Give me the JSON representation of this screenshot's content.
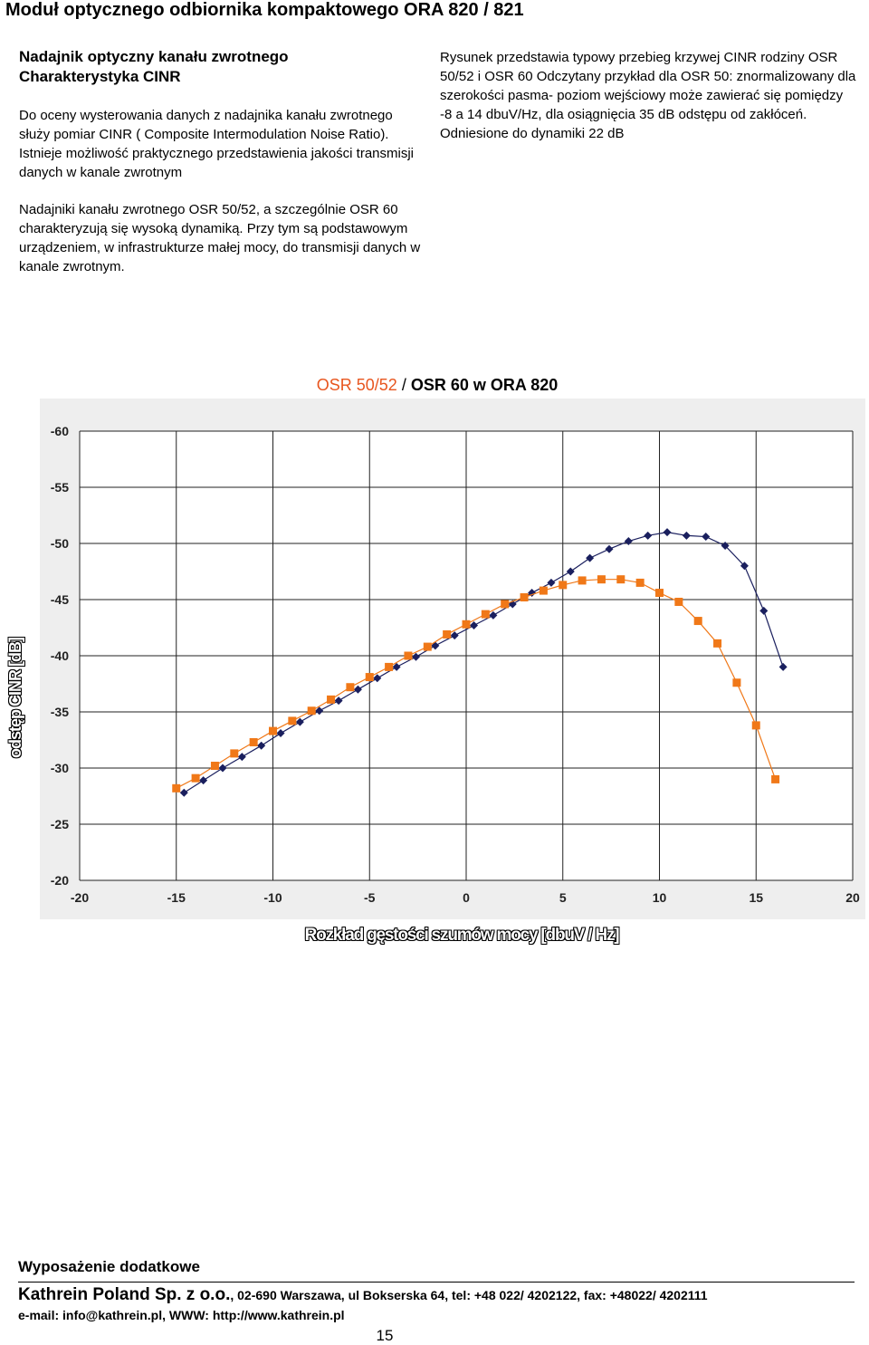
{
  "header": {
    "title": "Moduł optycznego odbiornika kompaktowego  ORA 820 / 821"
  },
  "left_column": {
    "heading_line1": "Nadajnik optyczny kanału zwrotnego",
    "heading_line2": "Charakterystyka CINR",
    "paragraph1": "Do oceny wysterowania danych z nadajnika kanału zwrotnego służy pomiar CINR ( Composite Intermodulation Noise Ratio). Istnieje możliwość praktycznego przedstawienia jakości transmisji danych w kanale zwrotnym",
    "paragraph2": "Nadajniki kanału zwrotnego OSR 50/52, a szczególnie OSR 60 charakteryzują się wysoką dynamiką.  Przy tym  są podstawowym urządzeniem, w infrastrukturze małej mocy, do transmisji danych w kanale zwrotnym."
  },
  "right_column": {
    "text": "Rysunek przedstawia typowy przebieg krzywej CINR rodziny  OSR 50/52 i  OSR 60 Odczytany przykład dla OSR 50: znormalizowany dla szerokości pasma- poziom wejściowy może zawierać się pomiędzy  -8 a 14 dbuV/Hz, dla osiągnięcia 35 dB odstępu od zakłóceń. Odniesione do dynamiki 22 dB"
  },
  "chart_title": {
    "part_orange": "OSR 50/52",
    "separator": " / ",
    "part_black": "OSR 60 w ORA 820"
  },
  "chart_data": {
    "type": "line",
    "title": "OSR 50/52 / OSR 60 w ORA 820",
    "xlabel": "Rozkład gęstości szumów mocy [dbuV / Hz]",
    "ylabel": "odstęp CINR [dB]",
    "xlim": [
      -20,
      20
    ],
    "ylim": [
      -20,
      -60
    ],
    "x_ticks": [
      "-20",
      "-15",
      "-10",
      "-5",
      "0",
      "5",
      "10",
      "15",
      "20"
    ],
    "y_ticks": [
      "-60",
      "-55",
      "-50",
      "-45",
      "-40",
      "-35",
      "-30",
      "-25",
      "-20"
    ],
    "grid": true,
    "series": [
      {
        "marker": "diamond",
        "color": "#1a1f5e",
        "x": [
          -14.6,
          -13.6,
          -12.6,
          -11.6,
          -10.6,
          -9.6,
          -8.6,
          -7.6,
          -6.6,
          -5.6,
          -4.6,
          -3.6,
          -2.6,
          -1.6,
          -0.6,
          0.4,
          1.4,
          2.4,
          3.4,
          4.4,
          5.4,
          6.4,
          7.4,
          8.4,
          9.4,
          10.4,
          11.4,
          12.4,
          13.4,
          14.4,
          15.4,
          16.4
        ],
        "y": [
          -27.8,
          -28.9,
          -30.0,
          -31.0,
          -32.0,
          -33.1,
          -34.1,
          -35.1,
          -36.0,
          -37.0,
          -38.0,
          -39.0,
          -39.9,
          -40.9,
          -41.8,
          -42.7,
          -43.6,
          -44.6,
          -45.6,
          -46.5,
          -47.5,
          -48.7,
          -49.5,
          -50.2,
          -50.7,
          -51.0,
          -50.7,
          -50.6,
          -49.8,
          -48.0,
          -44.0,
          -39.0
        ]
      },
      {
        "marker": "square",
        "color": "#f07818",
        "x": [
          -15.0,
          -14.0,
          -13.0,
          -12.0,
          -11.0,
          -10.0,
          -9.0,
          -8.0,
          -7.0,
          -6.0,
          -5.0,
          -4.0,
          -3.0,
          -2.0,
          -1.0,
          0.0,
          1.0,
          2.0,
          3.0,
          4.0,
          5.0,
          6.0,
          7.0,
          8.0,
          9.0,
          10.0,
          11.0,
          12.0,
          13.0,
          14.0,
          15.0,
          16.0
        ],
        "y": [
          -28.2,
          -29.1,
          -30.2,
          -31.3,
          -32.3,
          -33.3,
          -34.2,
          -35.1,
          -36.1,
          -37.2,
          -38.1,
          -39.0,
          -40.0,
          -40.8,
          -41.9,
          -42.8,
          -43.7,
          -44.6,
          -45.2,
          -45.8,
          -46.3,
          -46.7,
          -46.8,
          -46.8,
          -46.5,
          -45.6,
          -44.8,
          -43.1,
          -41.1,
          -37.6,
          -33.8,
          -29.0
        ]
      }
    ]
  },
  "footer": {
    "extras_title": "Wyposażenie dodatkowe",
    "company_name": "Kathrein Poland Sp. z o.o.",
    "company_address": ", 02-690 Warszawa, ul Bokserska 64, tel: +48 022/ 4202122, fax: +48022/ 4202111",
    "contact": "e-mail: info@kathrein.pl, WWW: http://www.kathrein.pl",
    "page_number": "15"
  }
}
